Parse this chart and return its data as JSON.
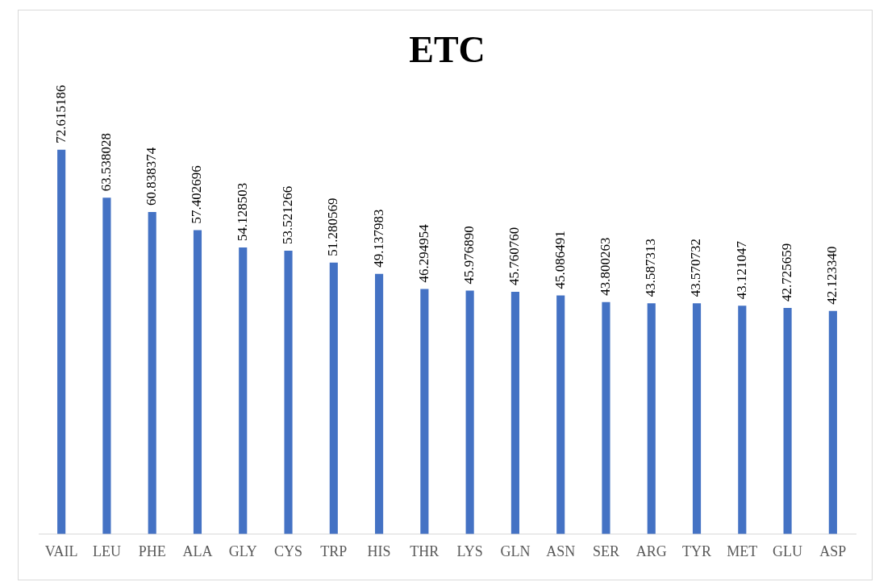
{
  "chart_data": {
    "type": "bar",
    "title": "ETC",
    "categories": [
      "VAIL",
      "LEU",
      "PHE",
      "ALA",
      "GLY",
      "CYS",
      "TRP",
      "HIS",
      "THR",
      "LYS",
      "GLN",
      "ASN",
      "SER",
      "ARG",
      "TYR",
      "MET",
      "GLU",
      "ASP"
    ],
    "values": [
      72.615186,
      63.538028,
      60.838374,
      57.402696,
      54.128503,
      53.521266,
      51.280569,
      49.137983,
      46.294954,
      45.97689,
      45.76076,
      45.086491,
      43.800263,
      43.587313,
      43.570732,
      43.121047,
      42.725659,
      42.12334
    ],
    "value_labels": [
      "72.615186",
      "63.538028",
      "60.838374",
      "57.402696",
      "54.128503",
      "53.521266",
      "51.280569",
      "49.137983",
      "46.294954",
      "45.976890",
      "45.760760",
      "45.086491",
      "43.800263",
      "43.587313",
      "43.570732",
      "43.121047",
      "42.725659",
      "42.123340"
    ],
    "color": "#4472c4",
    "tick_labels": "x",
    "grid": false,
    "legend": false
  }
}
